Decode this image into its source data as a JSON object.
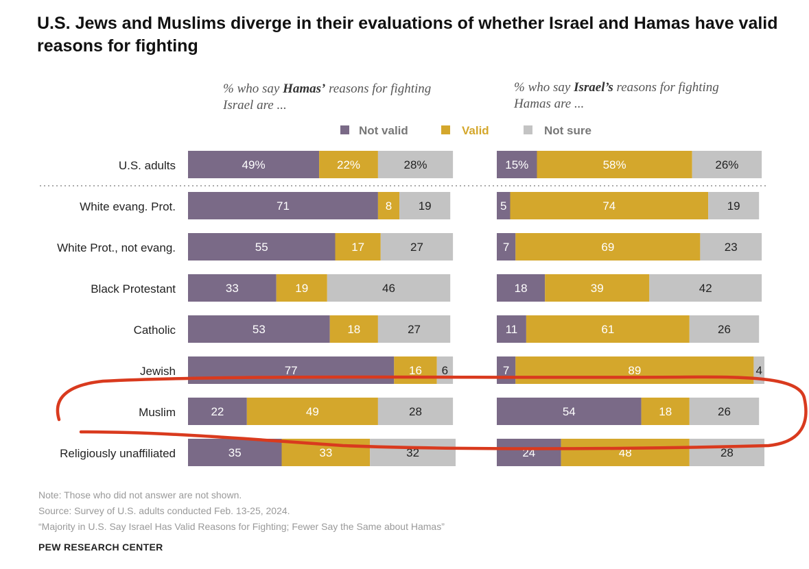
{
  "title": "U.S. Jews and Muslims diverge in their evaluations of whether Israel and Hamas have valid reasons for fighting",
  "panels": [
    {
      "subtitle_pre": "% who say ",
      "subtitle_bold": "Hamas’",
      "subtitle_post": " reasons for fighting Israel are ..."
    },
    {
      "subtitle_pre": "% who say ",
      "subtitle_bold": "Israel’s",
      "subtitle_post": " reasons for fighting Hamas are ..."
    }
  ],
  "legend": [
    "Not valid",
    "Valid",
    "Not sure"
  ],
  "colors": {
    "not_valid": "#7a6a87",
    "valid": "#d4a72c",
    "not_sure": "#c3c3c3",
    "annotation": "#d93a1e",
    "divider": "#aaaaaa"
  },
  "chart_data": {
    "type": "bar",
    "orientation": "horizontal",
    "stacked": true,
    "categories": [
      "U.S. adults",
      "White evang. Prot.",
      "White Prot., not evang.",
      "Black Protestant",
      "Catholic",
      "Jewish",
      "Muslim",
      "Religiously unaffiliated"
    ],
    "value_labels_first_row": [
      "49%",
      "22%",
      "28%",
      "15%",
      "58%",
      "26%"
    ],
    "panels": [
      {
        "name": "Hamas",
        "series": [
          {
            "name": "Not valid",
            "values": [
              49,
              71,
              55,
              33,
              53,
              77,
              22,
              35
            ]
          },
          {
            "name": "Valid",
            "values": [
              22,
              8,
              17,
              19,
              18,
              16,
              49,
              33
            ]
          },
          {
            "name": "Not sure",
            "values": [
              28,
              19,
              27,
              46,
              27,
              6,
              28,
              32
            ]
          }
        ]
      },
      {
        "name": "Israel",
        "series": [
          {
            "name": "Not valid",
            "values": [
              15,
              5,
              7,
              18,
              11,
              7,
              54,
              24
            ]
          },
          {
            "name": "Valid",
            "values": [
              58,
              74,
              69,
              39,
              61,
              89,
              18,
              48
            ]
          },
          {
            "name": "Not sure",
            "values": [
              26,
              19,
              23,
              42,
              26,
              4,
              26,
              28
            ]
          }
        ]
      }
    ],
    "highlighted_category": "Muslim"
  },
  "notes": [
    "Note: Those who did not answer are not shown.",
    "Source: Survey of U.S. adults conducted Feb. 13-25, 2024.",
    "“Majority in U.S. Say Israel Has Valid Reasons for Fighting; Fewer Say the Same about Hamas”"
  ],
  "brand": "PEW RESEARCH CENTER"
}
